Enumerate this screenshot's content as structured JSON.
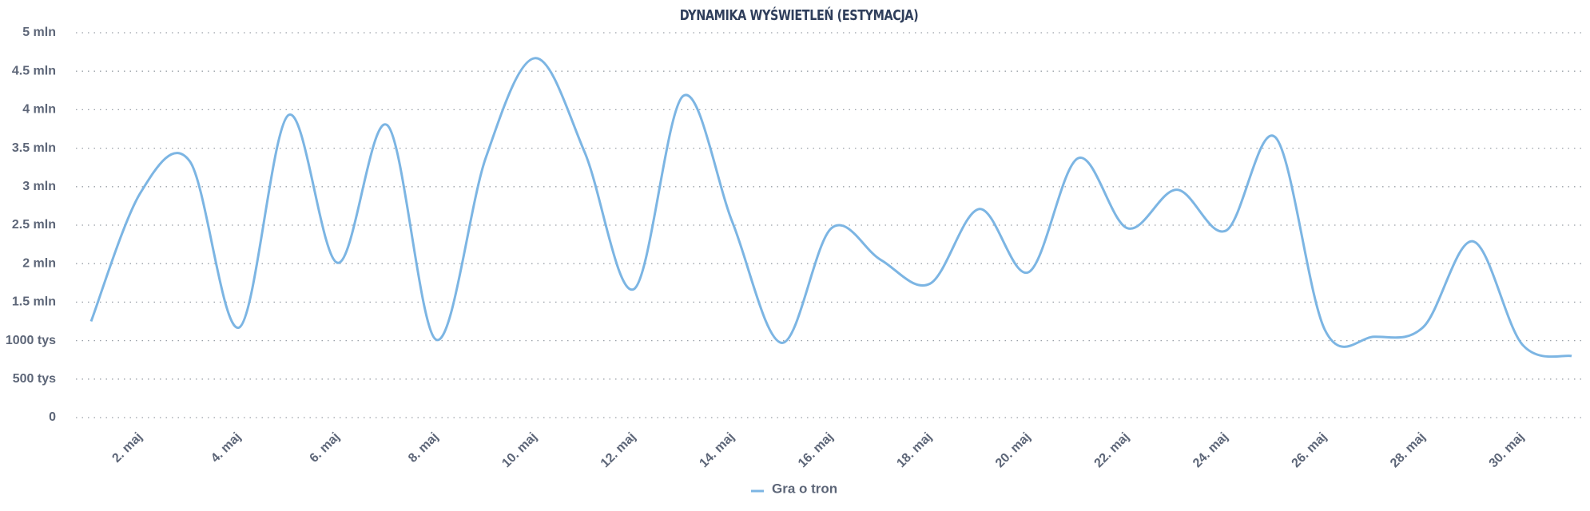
{
  "chart_data": {
    "type": "line",
    "title": "DYNAMIKA WYŚWIETLEŃ (ESTYMACJA)",
    "categories": [
      null,
      "2. maj",
      null,
      "4. maj",
      null,
      "6. maj",
      null,
      "8. maj",
      null,
      "10. maj",
      null,
      "12. maj",
      null,
      "14. maj",
      null,
      "16. maj",
      null,
      "18. maj",
      null,
      "20. maj",
      null,
      "22. maj",
      null,
      "24. maj",
      null,
      "26. maj",
      null,
      "28. maj",
      null,
      "30. maj",
      null
    ],
    "series": [
      {
        "name": "Gra o tron",
        "color": "#7cb5e3",
        "values": [
          1250000,
          2920000,
          3330000,
          1170000,
          3930000,
          2010000,
          3800000,
          1010000,
          3380000,
          4670000,
          3450000,
          1670000,
          4180000,
          2530000,
          970000,
          2460000,
          2050000,
          1740000,
          2710000,
          1890000,
          3370000,
          2460000,
          2960000,
          2430000,
          3640000,
          1140000,
          1050000,
          1180000,
          2290000,
          950000,
          800000
        ]
      }
    ],
    "ylim": [
      0,
      5000000
    ],
    "yticks": [
      0,
      {
        "value": 500000,
        "label": "500 tys"
      },
      {
        "value": 1000000,
        "label": "1000 tys"
      },
      {
        "value": 1500000,
        "label": "1.5 mln"
      },
      {
        "value": 2000000,
        "label": "2 mln"
      },
      {
        "value": 2500000,
        "label": "2.5 mln"
      },
      {
        "value": 3000000,
        "label": "3 mln"
      },
      {
        "value": 3500000,
        "label": "3.5 mln"
      },
      {
        "value": 4000000,
        "label": "4 mln"
      },
      {
        "value": 4500000,
        "label": "4.5 mln"
      },
      {
        "value": 5000000,
        "label": "5 mln"
      }
    ],
    "grid": true,
    "legend": "bottom"
  }
}
